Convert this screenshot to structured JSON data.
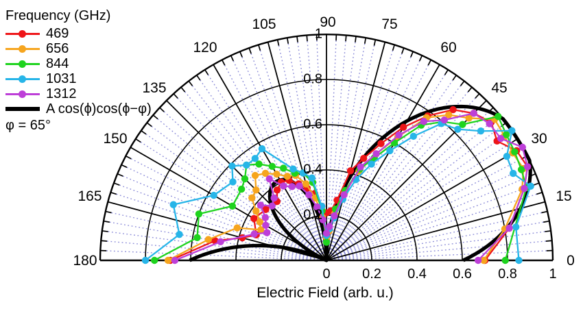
{
  "legend": {
    "title": "Frequency (GHz)",
    "items": [
      {
        "label": "469"
      },
      {
        "label": "656"
      },
      {
        "label": "844"
      },
      {
        "label": "1031"
      },
      {
        "label": "1312"
      }
    ],
    "fit_label": "A cos(ϕ)cos(ϕ−φ)",
    "note": "φ = 65°"
  },
  "axes": {
    "xlabel": "Electric Field (arb. u.)",
    "angle_ticks": [
      "0",
      "15",
      "30",
      "45",
      "60",
      "75",
      "90",
      "105",
      "120",
      "135",
      "150",
      "165",
      "180"
    ],
    "radial_ticks_vertical": [
      "1",
      "0.8",
      "0.6",
      "0.4",
      "0.2"
    ],
    "radial_ticks_bottom": [
      "0",
      "0.2",
      "0.4",
      "0.6",
      "0.8",
      "1"
    ]
  },
  "chart_data": {
    "type": "line",
    "subtype": "polar-half",
    "angle_unit": "degrees",
    "angle_range": [
      0,
      180
    ],
    "r_range": [
      0,
      1
    ],
    "r_label": "Electric Field (arb. u.)",
    "grid": {
      "major_angle_step_deg": 15,
      "minor_angle_step_deg": 2.5,
      "radial_circles": [
        0.2,
        0.4,
        0.6,
        0.8,
        1.0
      ],
      "minor_line_color": "#8b8bd8",
      "major_line_color": "#000000"
    },
    "series": [
      {
        "name": "469",
        "color": "#ee1518",
        "points": [
          [
            0,
            0.7
          ],
          [
            10,
            0.82
          ],
          [
            20,
            0.93
          ],
          [
            25,
            0.98
          ],
          [
            30,
            0.97
          ],
          [
            35,
            0.92
          ],
          [
            40,
            0.95
          ],
          [
            45,
            0.92
          ],
          [
            50,
            0.87
          ],
          [
            55,
            0.78
          ],
          [
            60,
            0.68
          ],
          [
            65,
            0.57
          ],
          [
            70,
            0.48
          ],
          [
            75,
            0.41
          ],
          [
            80,
            0.27
          ],
          [
            85,
            0.22
          ],
          [
            90,
            0.21
          ],
          [
            95,
            0.24
          ],
          [
            100,
            0.3
          ],
          [
            105,
            0.33
          ],
          [
            110,
            0.36
          ],
          [
            115,
            0.39
          ],
          [
            120,
            0.4
          ],
          [
            125,
            0.38
          ],
          [
            130,
            0.34
          ],
          [
            140,
            0.35
          ],
          [
            150,
            0.37
          ],
          [
            160,
            0.33
          ],
          [
            165,
            0.385
          ],
          [
            170,
            0.5
          ],
          [
            180,
            0.69
          ]
        ]
      },
      {
        "name": "656",
        "color": "#f6a51e",
        "points": [
          [
            0,
            0.695
          ],
          [
            10,
            0.8
          ],
          [
            20,
            0.92
          ],
          [
            25,
            0.96
          ],
          [
            30,
            0.95
          ],
          [
            35,
            0.96
          ],
          [
            40,
            0.97
          ],
          [
            45,
            0.89
          ],
          [
            50,
            0.84
          ],
          [
            55,
            0.77
          ],
          [
            60,
            0.63
          ],
          [
            65,
            0.52
          ],
          [
            70,
            0.42
          ],
          [
            75,
            0.31
          ],
          [
            80,
            0.21
          ],
          [
            85,
            0.13
          ],
          [
            90,
            0.1
          ],
          [
            95,
            0.19
          ],
          [
            100,
            0.28
          ],
          [
            105,
            0.35
          ],
          [
            110,
            0.4
          ],
          [
            115,
            0.41
          ],
          [
            120,
            0.44
          ],
          [
            125,
            0.47
          ],
          [
            130,
            0.49
          ],
          [
            135,
            0.44
          ],
          [
            140,
            0.43
          ],
          [
            145,
            0.38
          ],
          [
            150,
            0.34
          ],
          [
            155,
            0.32
          ],
          [
            160,
            0.42
          ],
          [
            170,
            0.53
          ],
          [
            180,
            0.7
          ]
        ]
      },
      {
        "name": "844",
        "color": "#1ed31e",
        "points": [
          [
            0,
            0.79
          ],
          [
            20,
            0.94
          ],
          [
            25,
            0.95
          ],
          [
            30,
            0.96
          ],
          [
            35,
            0.97
          ],
          [
            40,
            0.99
          ],
          [
            45,
            0.85
          ],
          [
            50,
            0.8
          ],
          [
            55,
            0.73
          ],
          [
            60,
            0.6
          ],
          [
            65,
            0.5
          ],
          [
            70,
            0.43
          ],
          [
            75,
            0.32
          ],
          [
            80,
            0.23
          ],
          [
            85,
            0.14
          ],
          [
            90,
            0.08
          ],
          [
            95,
            0.22
          ],
          [
            100,
            0.35
          ],
          [
            105,
            0.4
          ],
          [
            110,
            0.41
          ],
          [
            115,
            0.45
          ],
          [
            120,
            0.48
          ],
          [
            125,
            0.52
          ],
          [
            130,
            0.55
          ],
          [
            135,
            0.51
          ],
          [
            140,
            0.49
          ],
          [
            150,
            0.48
          ],
          [
            160,
            0.6
          ],
          [
            170,
            0.58
          ],
          [
            180,
            0.76
          ]
        ]
      },
      {
        "name": "1031",
        "color": "#27b5e8",
        "points": [
          [
            0,
            0.85
          ],
          [
            10,
            0.85
          ],
          [
            20,
            0.96
          ],
          [
            25,
            0.91
          ],
          [
            30,
            0.92
          ],
          [
            35,
            1.0
          ],
          [
            40,
            0.89
          ],
          [
            45,
            0.82
          ],
          [
            50,
            0.79
          ],
          [
            55,
            0.67
          ],
          [
            60,
            0.56
          ],
          [
            65,
            0.47
          ],
          [
            70,
            0.38
          ],
          [
            75,
            0.28
          ],
          [
            80,
            0.19
          ],
          [
            85,
            0.14
          ],
          [
            90,
            0.11
          ],
          [
            95,
            0.24
          ],
          [
            100,
            0.37
          ],
          [
            105,
            0.4
          ],
          [
            110,
            0.43
          ],
          [
            120,
            0.57
          ],
          [
            125,
            0.55
          ],
          [
            130,
            0.55
          ],
          [
            135,
            0.59
          ],
          [
            140,
            0.54
          ],
          [
            150,
            0.575
          ],
          [
            160,
            0.72
          ],
          [
            170,
            0.66
          ],
          [
            180,
            0.8
          ]
        ]
      },
      {
        "name": "1312",
        "color": "#bd3fd8",
        "points": [
          [
            0,
            0.67
          ],
          [
            10,
            0.82
          ],
          [
            20,
            0.93
          ],
          [
            25,
            0.98
          ],
          [
            30,
            1.0
          ],
          [
            35,
            0.94
          ],
          [
            40,
            0.94
          ],
          [
            45,
            0.92
          ],
          [
            50,
            0.81
          ],
          [
            55,
            0.75
          ],
          [
            60,
            0.64
          ],
          [
            65,
            0.52
          ],
          [
            70,
            0.44
          ],
          [
            75,
            0.3
          ],
          [
            80,
            0.2
          ],
          [
            85,
            0.15
          ],
          [
            90,
            0.12
          ],
          [
            95,
            0.18
          ],
          [
            100,
            0.24
          ],
          [
            105,
            0.3
          ],
          [
            110,
            0.35
          ],
          [
            115,
            0.36
          ],
          [
            120,
            0.38
          ],
          [
            125,
            0.44
          ],
          [
            130,
            0.36
          ],
          [
            135,
            0.34
          ],
          [
            140,
            0.38
          ],
          [
            145,
            0.33
          ],
          [
            150,
            0.31
          ],
          [
            155,
            0.29
          ],
          [
            160,
            0.34
          ],
          [
            170,
            0.475
          ],
          [
            180,
            0.67
          ]
        ]
      }
    ],
    "fit": {
      "name": "A cos(ϕ)cos(ϕ−φ)",
      "formula": "r = |A·cos(ϕ)·cos(ϕ−φ)|",
      "A": 1.43,
      "phi_offset_deg": 65,
      "color": "#000000",
      "note": "φ = 65°"
    }
  }
}
